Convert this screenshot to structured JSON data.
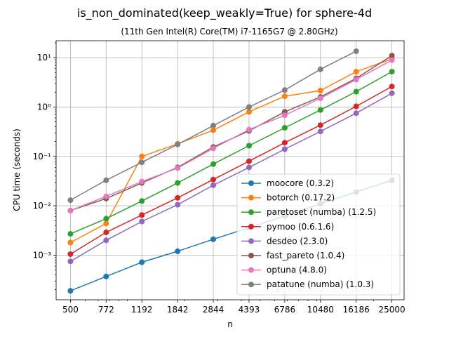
{
  "chart_data": {
    "type": "line",
    "title": "is_non_dominated(keep_weakly=True) for sphere-4d",
    "subtitle": "(11th Gen Intel(R) Core(TM) i7-1165G7 @ 2.80GHz)",
    "xlabel": "n",
    "ylabel": "CPU time (seconds)",
    "yscale": "log",
    "xscale": "log",
    "x": [
      500,
      772,
      1192,
      1842,
      2844,
      4393,
      6786,
      10480,
      16186,
      25000
    ],
    "x_tick_labels": [
      "500",
      "772",
      "1192",
      "1842",
      "2844",
      "4393",
      "6786",
      "10480",
      "16186",
      "25000"
    ],
    "y_tick_labels": [
      "10⁻³",
      "10⁻²",
      "10⁻¹",
      "10⁰",
      "10¹"
    ],
    "xlim": [
      420,
      29000
    ],
    "ylim": [
      0.000125,
      22
    ],
    "grid": true,
    "legend_position": "lower-right",
    "series": [
      {
        "name": "moocore (0.3.2)",
        "color": "#1f77b4",
        "values": [
          0.00019,
          0.00037,
          0.00072,
          0.0012,
          0.0021,
          0.0036,
          0.0062,
          0.011,
          0.019,
          0.033
        ]
      },
      {
        "name": "botorch (0.17.2)",
        "color": "#ff7f0e",
        "values": [
          0.0018,
          0.0044,
          0.1,
          0.18,
          0.34,
          0.8,
          1.65,
          2.15,
          5.2,
          9.4
        ]
      },
      {
        "name": "paretoset (numba) (1.2.5)",
        "color": "#2ca02c",
        "values": [
          0.0027,
          0.0055,
          0.0125,
          0.029,
          0.07,
          0.165,
          0.38,
          0.87,
          2.05,
          5.2
        ]
      },
      {
        "name": "pymoo (0.6.1.6)",
        "color": "#d62728",
        "values": [
          0.00105,
          0.0029,
          0.0065,
          0.0145,
          0.034,
          0.08,
          0.19,
          0.43,
          1.03,
          2.6
        ]
      },
      {
        "name": "desdeo (2.3.0)",
        "color": "#9467bd",
        "values": [
          0.00075,
          0.002,
          0.0048,
          0.0105,
          0.026,
          0.06,
          0.14,
          0.32,
          0.75,
          1.9
        ]
      },
      {
        "name": "fast_pareto (1.0.4)",
        "color": "#8c564b",
        "values": [
          0.008,
          0.014,
          0.029,
          0.06,
          0.155,
          0.33,
          0.8,
          1.6,
          3.8,
          11
        ]
      },
      {
        "name": "optuna (4.8.0)",
        "color": "#e377c2",
        "values": [
          0.008,
          0.0155,
          0.031,
          0.058,
          0.145,
          0.35,
          0.68,
          1.5,
          3.6,
          8.9
        ]
      },
      {
        "name": "patatune (numba) (1.0.3)",
        "color": "#7f7f7f",
        "values": [
          0.013,
          0.033,
          0.076,
          0.175,
          0.42,
          1.0,
          2.2,
          5.8,
          13.5,
          null
        ]
      }
    ]
  }
}
